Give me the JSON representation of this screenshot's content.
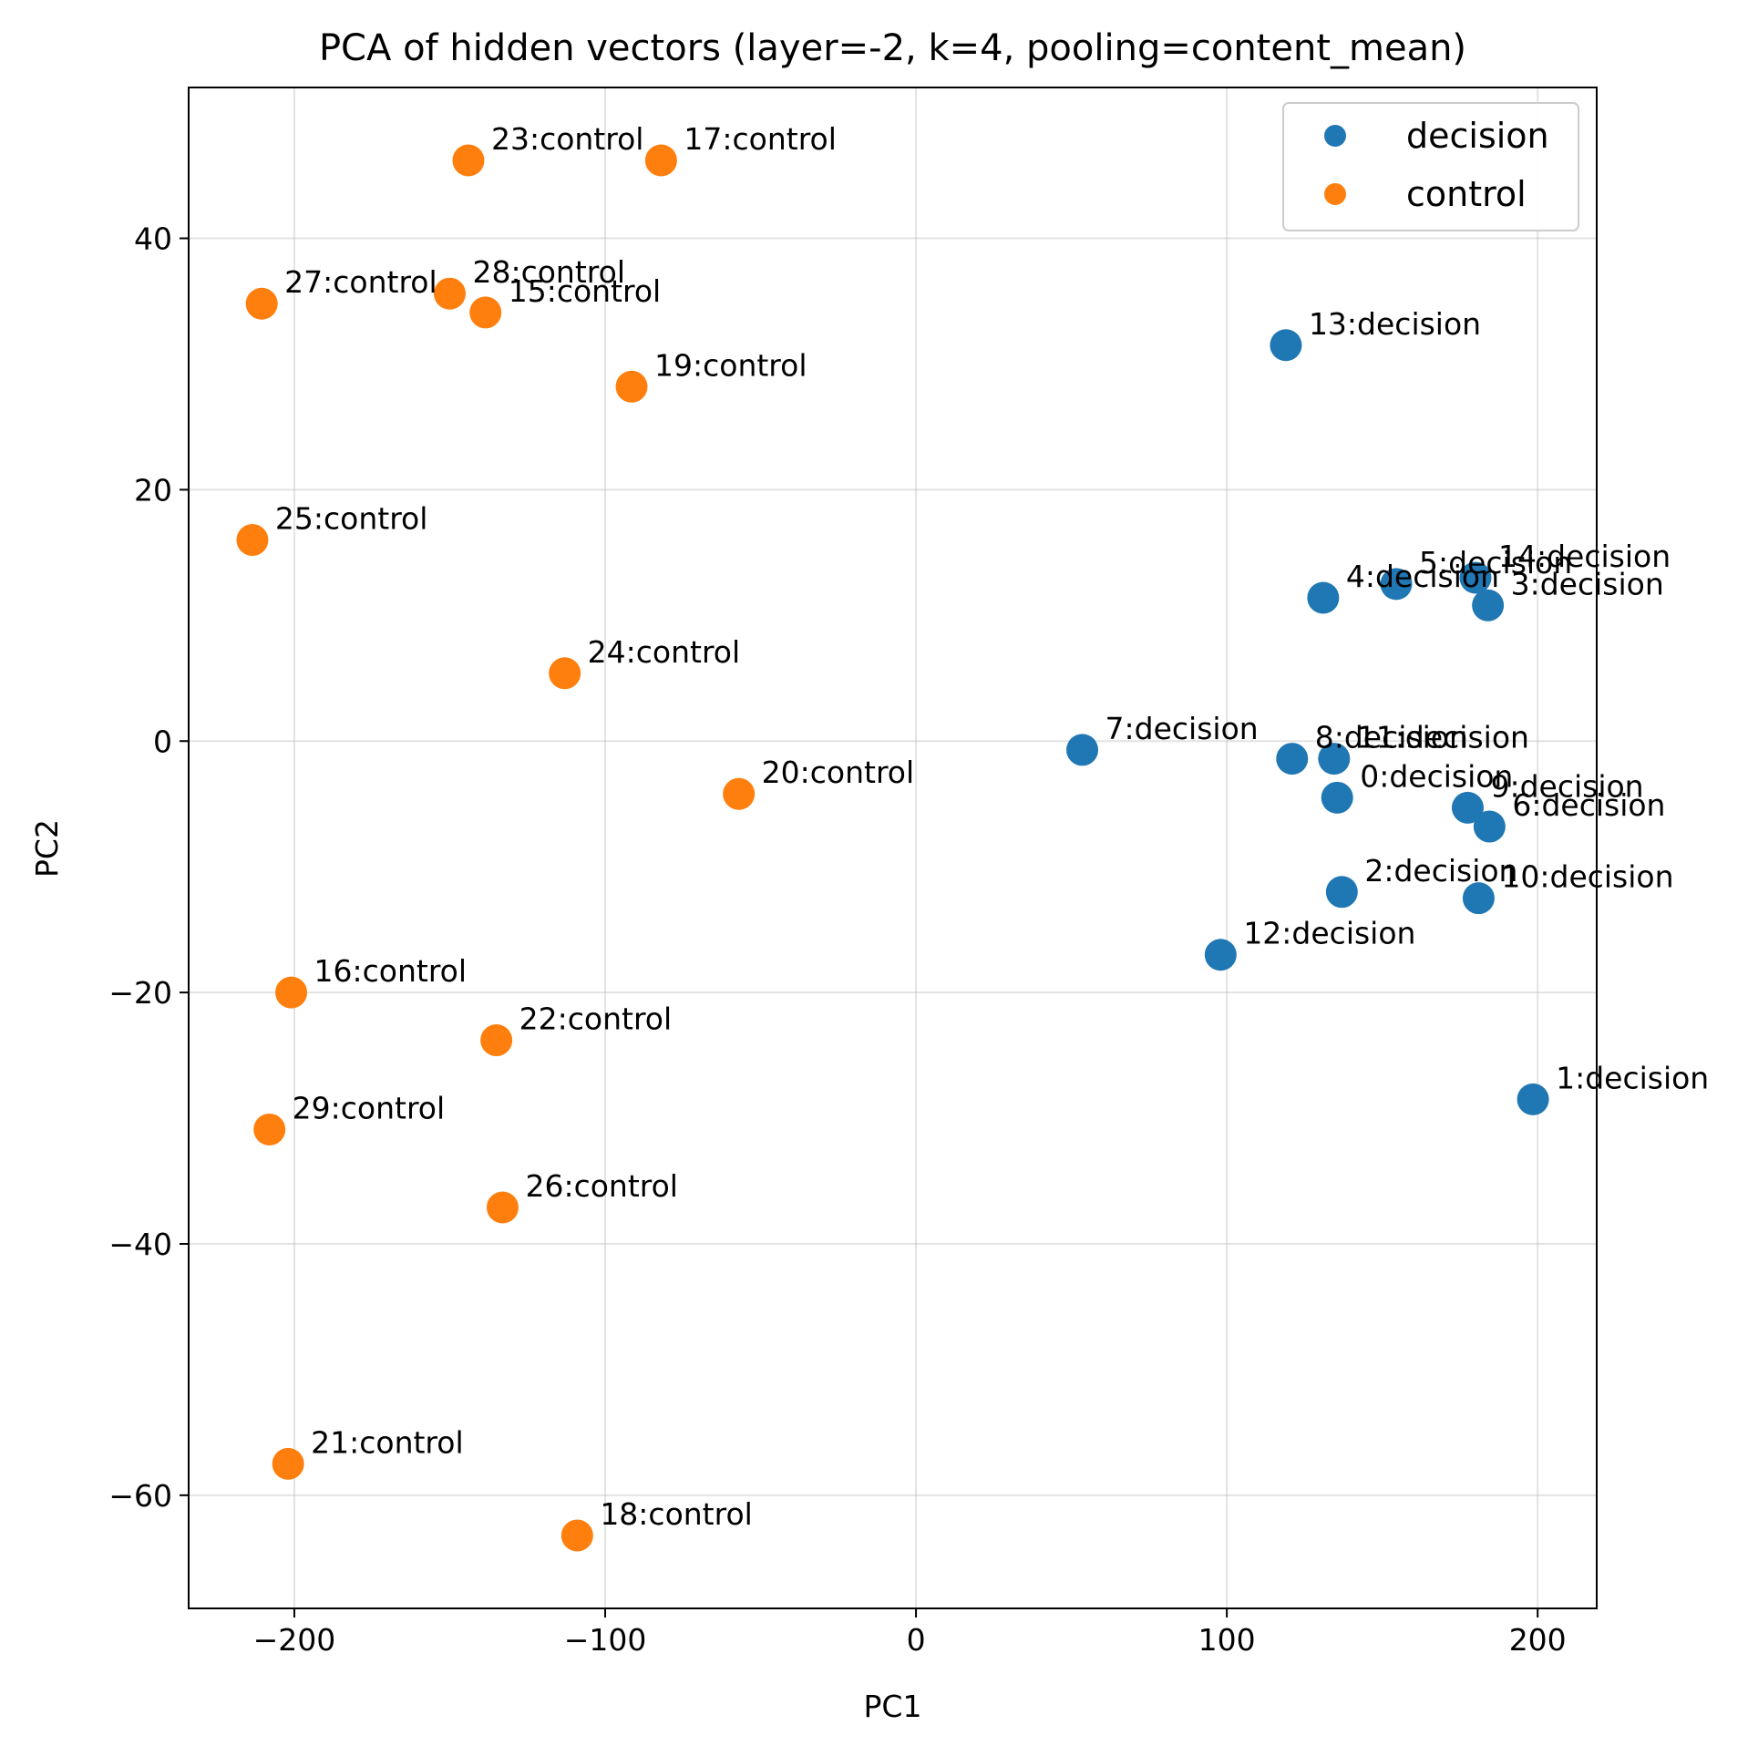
{
  "chart_data": {
    "type": "scatter",
    "title": "PCA of hidden vectors (layer=-2, k=4, pooling=content_mean)",
    "xlabel": "PC1",
    "ylabel": "PC2",
    "xlim": [
      -234,
      219
    ],
    "ylim": [
      -69,
      52
    ],
    "xticks": [
      -200,
      -100,
      0,
      100,
      200
    ],
    "yticks": [
      -60,
      -40,
      -20,
      0,
      20,
      40
    ],
    "xtick_labels": [
      "−200",
      "−100",
      "0",
      "100",
      "200"
    ],
    "ytick_labels": [
      "−60",
      "−40",
      "−20",
      "0",
      "20",
      "40"
    ],
    "grid": true,
    "legend_position": "top-right",
    "series": [
      {
        "name": "decision",
        "color": "#1f77b4",
        "points": [
          {
            "label": "0:decision",
            "x": 135.5,
            "y": -4.5
          },
          {
            "label": "1:decision",
            "x": 198.5,
            "y": -28.5
          },
          {
            "label": "2:decision",
            "x": 137.0,
            "y": -12.0
          },
          {
            "label": "3:decision",
            "x": 184.0,
            "y": 10.8
          },
          {
            "label": "4:decision",
            "x": 131.0,
            "y": 11.4
          },
          {
            "label": "5:decision",
            "x": 154.5,
            "y": 12.5
          },
          {
            "label": "6:decision",
            "x": 184.5,
            "y": -6.8
          },
          {
            "label": "7:decision",
            "x": 53.5,
            "y": -0.7
          },
          {
            "label": "8:decision",
            "x": 121.0,
            "y": -1.4
          },
          {
            "label": "9:decision",
            "x": 177.5,
            "y": -5.3
          },
          {
            "label": "10:decision",
            "x": 181.0,
            "y": -12.5
          },
          {
            "label": "11:decision",
            "x": 134.5,
            "y": -1.4
          },
          {
            "label": "12:decision",
            "x": 98.0,
            "y": -17.0
          },
          {
            "label": "13:decision",
            "x": 119.0,
            "y": 31.5
          },
          {
            "label": "14:decision",
            "x": 180.0,
            "y": 13.0
          }
        ]
      },
      {
        "name": "control",
        "color": "#ff7f0e",
        "points": [
          {
            "label": "15:control",
            "x": -138.5,
            "y": 34.1
          },
          {
            "label": "16:control",
            "x": -201.0,
            "y": -20.0
          },
          {
            "label": "17:control",
            "x": -82.0,
            "y": 46.2
          },
          {
            "label": "18:control",
            "x": -109.0,
            "y": -63.2
          },
          {
            "label": "19:control",
            "x": -91.5,
            "y": 28.2
          },
          {
            "label": "20:control",
            "x": -57.0,
            "y": -4.2
          },
          {
            "label": "21:control",
            "x": -202.0,
            "y": -57.5
          },
          {
            "label": "22:control",
            "x": -135.0,
            "y": -23.8
          },
          {
            "label": "23:control",
            "x": -144.0,
            "y": 46.2
          },
          {
            "label": "24:control",
            "x": -113.0,
            "y": 5.4
          },
          {
            "label": "25:control",
            "x": -213.5,
            "y": 16.0
          },
          {
            "label": "26:control",
            "x": -133.0,
            "y": -37.1
          },
          {
            "label": "27:control",
            "x": -210.5,
            "y": 34.8
          },
          {
            "label": "28:control",
            "x": -150.0,
            "y": 35.6
          },
          {
            "label": "29:control",
            "x": -208.0,
            "y": -30.9
          }
        ]
      }
    ]
  }
}
